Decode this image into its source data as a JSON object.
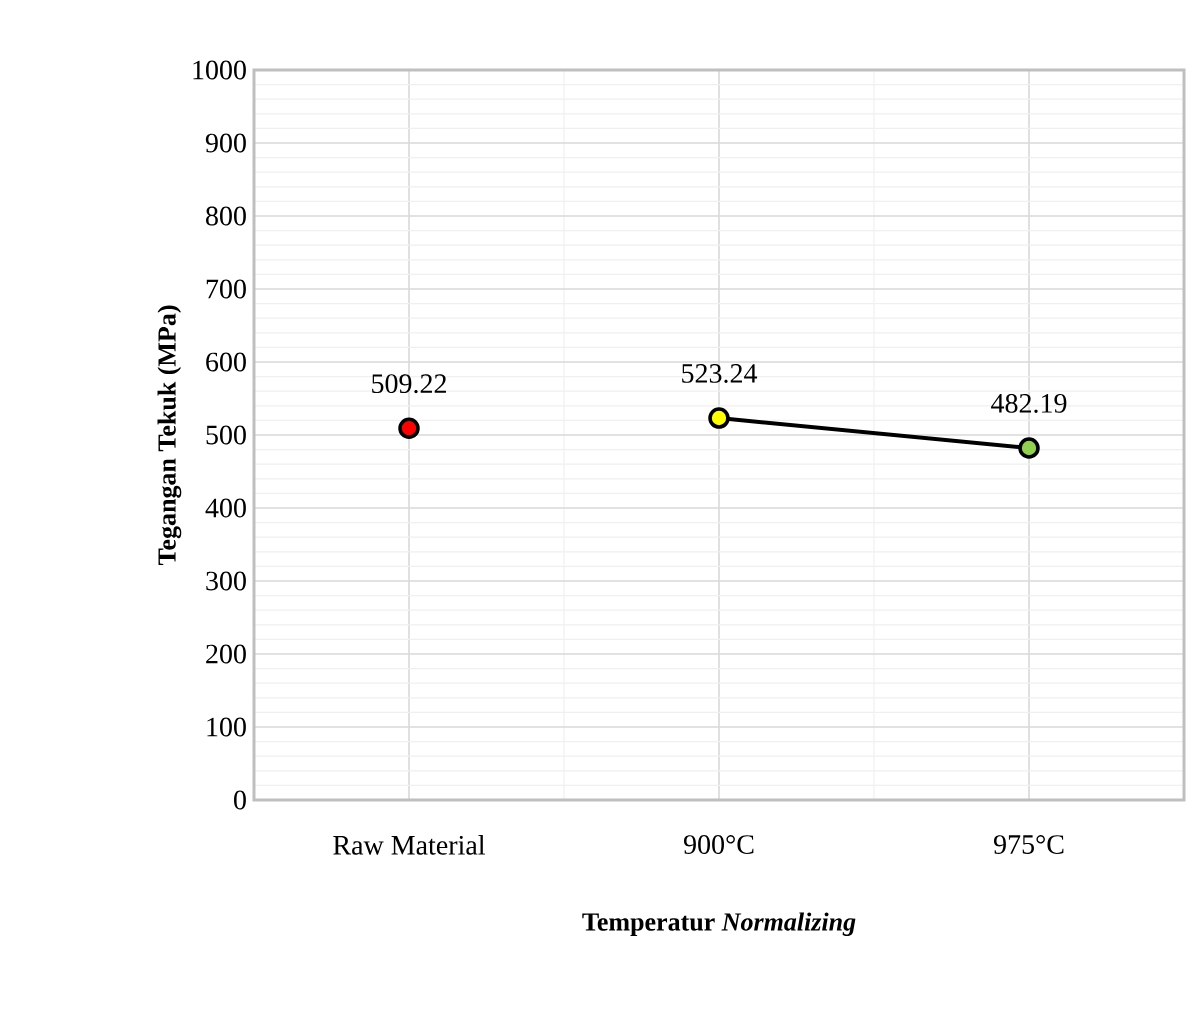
{
  "chart_data": {
    "type": "line",
    "xlabel": "Temperatur *Normalizing*",
    "ylabel": "Tegangan Tekuk (MPa)",
    "categories": [
      "Raw Material",
      "900°C",
      "975°C"
    ],
    "series": [
      {
        "type": "scatter",
        "color": "#000000",
        "colors": [
          "#ff0000",
          null,
          null
        ],
        "values": [
          509.22,
          null,
          null
        ]
      },
      {
        "color": "#000000",
        "colors": [
          null,
          "#ffff00",
          "#92d050"
        ],
        "values": [
          null,
          523.24,
          482.19
        ]
      }
    ],
    "ylim": [
      0,
      1000
    ],
    "yticks": [
      0,
      100,
      200,
      300,
      400,
      500,
      600,
      700,
      800,
      900,
      1000
    ],
    "grid": true,
    "marker": "circle",
    "line_style": "solid",
    "data_labels": true
  }
}
